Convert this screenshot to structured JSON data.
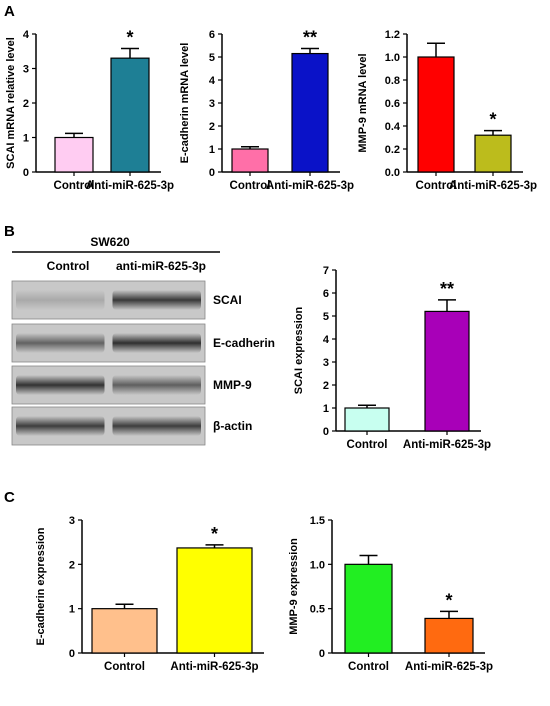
{
  "panels": {
    "a": "A",
    "b": "B",
    "c": "C"
  },
  "blot": {
    "cell_line": "SW620",
    "lanes": [
      "Control",
      "anti-miR-625-3p"
    ],
    "rows": [
      {
        "label": "SCAI",
        "bands": [
          0.18,
          0.85
        ]
      },
      {
        "label": "E-cadherin",
        "bands": [
          0.6,
          0.9
        ]
      },
      {
        "label": "MMP-9",
        "bands": [
          0.88,
          0.62
        ]
      },
      {
        "label": "β-actin",
        "bands": [
          0.82,
          0.82
        ]
      }
    ]
  },
  "chart_data": [
    {
      "id": "a1",
      "type": "bar",
      "categories": [
        "Control",
        "Anti-miR-625-3p"
      ],
      "values": [
        1.0,
        3.3
      ],
      "errors": [
        0.12,
        0.28
      ],
      "colors": [
        "#ffccf2",
        "#1e7f95"
      ],
      "significance": [
        "",
        "*"
      ],
      "ylabel": "SCAI mRNA relative level",
      "ylim": [
        0,
        4
      ],
      "yticks": [
        "0",
        "1",
        "2",
        "3",
        "4"
      ]
    },
    {
      "id": "a2",
      "type": "bar",
      "categories": [
        "Control",
        "Anti-miR-625-3p"
      ],
      "values": [
        1.0,
        5.15
      ],
      "errors": [
        0.1,
        0.22
      ],
      "colors": [
        "#ff6fa8",
        "#0a12c8"
      ],
      "significance": [
        "",
        "**"
      ],
      "ylabel": "E-cadherin mRNA level",
      "ylim": [
        0,
        6
      ],
      "yticks": [
        "0",
        "1",
        "2",
        "3",
        "4",
        "5",
        "6"
      ]
    },
    {
      "id": "a3",
      "type": "bar",
      "categories": [
        "Control",
        "Anti-miR-625-3p"
      ],
      "values": [
        1.0,
        0.32
      ],
      "errors": [
        0.12,
        0.04
      ],
      "colors": [
        "#ff0000",
        "#bcbc1c"
      ],
      "significance": [
        "",
        "*"
      ],
      "ylabel": "MMP-9 mRNA level",
      "ylim": [
        0,
        1.2
      ],
      "yticks": [
        "0.0",
        "0.2",
        "0.4",
        "0.6",
        "0.8",
        "1.0",
        "1.2"
      ]
    },
    {
      "id": "b1",
      "type": "bar",
      "categories": [
        "Control",
        "Anti-miR-625-3p"
      ],
      "values": [
        1.0,
        5.2
      ],
      "errors": [
        0.12,
        0.5
      ],
      "colors": [
        "#c8fff0",
        "#a800b8"
      ],
      "significance": [
        "",
        "**"
      ],
      "ylabel": "SCAI expression",
      "ylim": [
        0,
        7
      ],
      "yticks": [
        "0",
        "1",
        "2",
        "3",
        "4",
        "5",
        "6",
        "7"
      ]
    },
    {
      "id": "c1",
      "type": "bar",
      "categories": [
        "Control",
        "Anti-miR-625-3p"
      ],
      "values": [
        1.0,
        2.37
      ],
      "errors": [
        0.1,
        0.07
      ],
      "colors": [
        "#ffc08c",
        "#ffff00"
      ],
      "significance": [
        "",
        "*"
      ],
      "ylabel": "E-cadherin expression",
      "ylim": [
        0,
        3
      ],
      "yticks": [
        "0",
        "1",
        "2",
        "3"
      ]
    },
    {
      "id": "c2",
      "type": "bar",
      "categories": [
        "Control",
        "Anti-miR-625-3p"
      ],
      "values": [
        1.0,
        0.39
      ],
      "errors": [
        0.1,
        0.08
      ],
      "colors": [
        "#22ee22",
        "#ff6a10"
      ],
      "significance": [
        "",
        "*"
      ],
      "ylabel": "MMP-9 expression",
      "ylim": [
        0,
        1.5
      ],
      "yticks": [
        "0",
        "0.5",
        "1.0",
        "1.5"
      ]
    }
  ]
}
